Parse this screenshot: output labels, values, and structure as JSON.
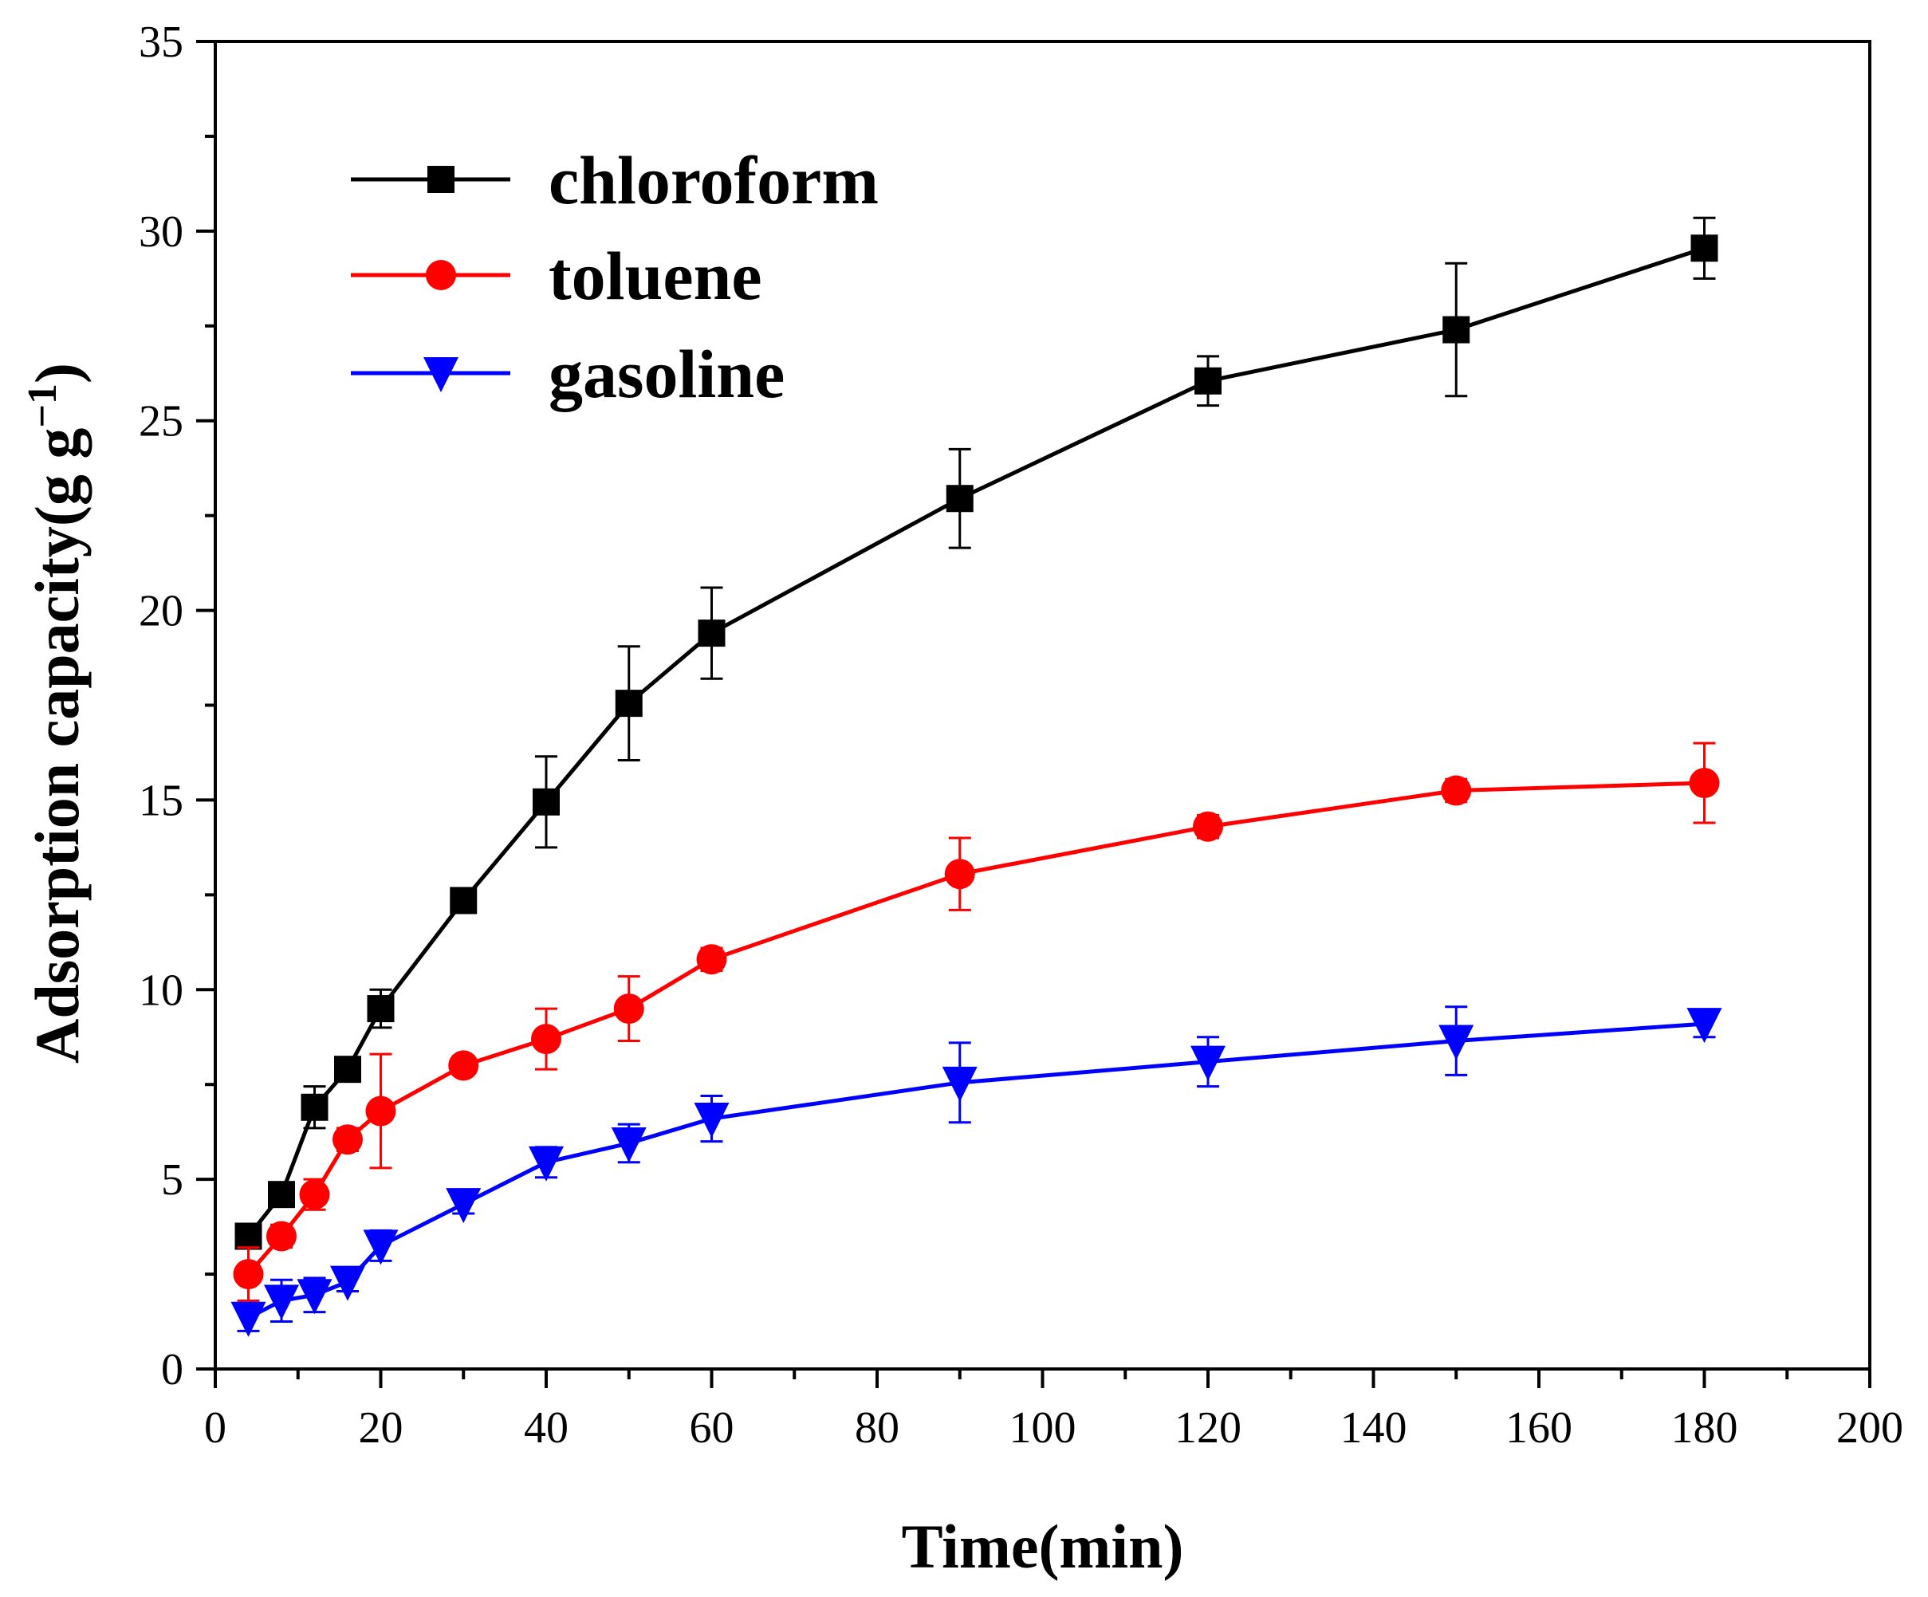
{
  "chart_data": {
    "type": "line",
    "title": "",
    "xlabel": "Time(min)",
    "ylabel": "Adsorption capacity(g g",
    "ylabel_sup": "−1",
    "ylabel_close": ")",
    "xlim": [
      0,
      200
    ],
    "ylim": [
      0,
      35
    ],
    "xticks": [
      0,
      20,
      40,
      60,
      80,
      100,
      120,
      140,
      160,
      180,
      200
    ],
    "yticks": [
      0,
      5,
      10,
      15,
      20,
      25,
      30,
      35
    ],
    "xtick_labels": [
      "0",
      "20",
      "40",
      "60",
      "80",
      "100",
      "120",
      "140",
      "160",
      "180",
      "200"
    ],
    "ytick_labels": [
      "0",
      "5",
      "10",
      "15",
      "20",
      "25",
      "30",
      "35"
    ],
    "grid": false,
    "legend_position": "top-left",
    "x": [
      4,
      8,
      12,
      16,
      20,
      30,
      40,
      50,
      60,
      90,
      120,
      150,
      180
    ],
    "series": [
      {
        "name": "chloroform",
        "color": "#000000",
        "marker": "square",
        "values": [
          3.5,
          4.6,
          6.9,
          7.9,
          9.5,
          12.35,
          14.95,
          17.55,
          19.4,
          22.95,
          26.05,
          27.4,
          29.55
        ],
        "errors": [
          0.3,
          0.3,
          0.55,
          0.3,
          0.5,
          0.3,
          1.2,
          1.5,
          1.2,
          1.3,
          0.65,
          1.75,
          0.8
        ]
      },
      {
        "name": "toluene",
        "color": "#ff0000",
        "marker": "circle",
        "values": [
          2.5,
          3.5,
          4.6,
          6.05,
          6.8,
          8.0,
          8.7,
          9.5,
          10.8,
          13.05,
          14.3,
          15.25,
          15.45
        ],
        "errors": [
          0.7,
          0.3,
          0.4,
          0.3,
          1.5,
          0.25,
          0.8,
          0.85,
          0.3,
          0.95,
          0.3,
          0.3,
          1.05
        ]
      },
      {
        "name": "gasoline",
        "color": "#0000ff",
        "marker": "triangle-down",
        "values": [
          1.35,
          1.8,
          1.95,
          2.3,
          3.25,
          4.35,
          5.45,
          5.95,
          6.6,
          7.55,
          8.1,
          8.65,
          9.1
        ],
        "errors": [
          0.35,
          0.55,
          0.45,
          0.25,
          0.4,
          0.25,
          0.4,
          0.5,
          0.6,
          1.05,
          0.65,
          0.9,
          0.35
        ]
      }
    ]
  }
}
